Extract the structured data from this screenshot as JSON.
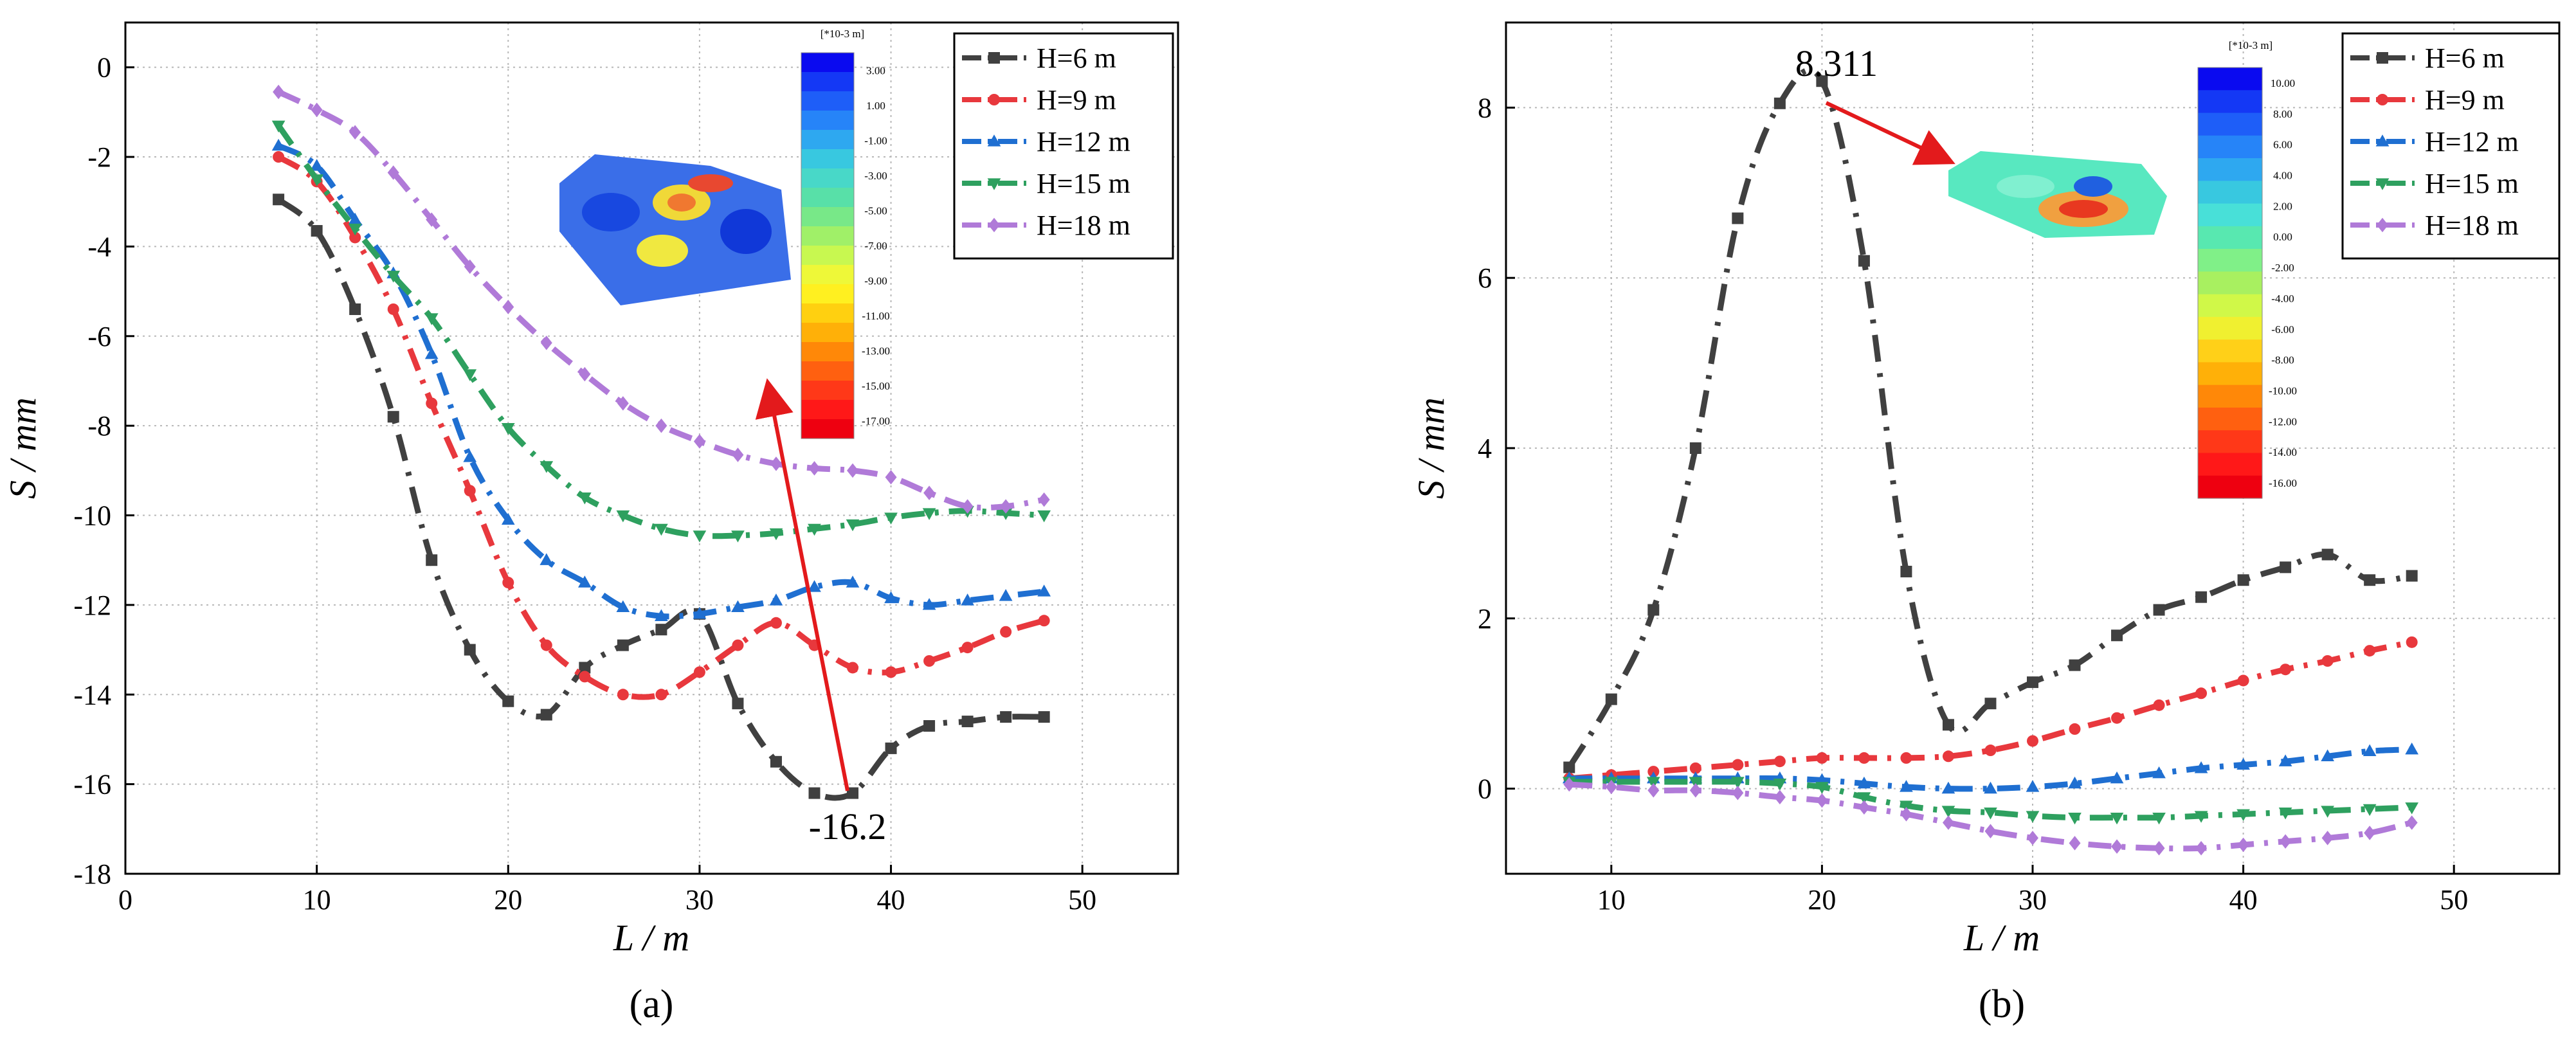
{
  "colors": {
    "H6": "#404040",
    "H9": "#e8383d",
    "H12": "#1f6fd1",
    "H15": "#2ea05f",
    "H18": "#b07ad8",
    "arrow": "#e31a1c",
    "grid": "#b8b8b8"
  },
  "chart_data": [
    {
      "type": "line",
      "panel_label": "(a)",
      "xlabel": "L / m",
      "ylabel": "S / mm",
      "xlim": [
        0,
        55
      ],
      "ylim": [
        -18,
        1
      ],
      "xticks": [
        0,
        10,
        20,
        30,
        40,
        50
      ],
      "yticks": [
        0,
        -2,
        -4,
        -6,
        -8,
        -10,
        -12,
        -14,
        -16,
        -18
      ],
      "grid": true,
      "legend_position": "top-right",
      "series": [
        {
          "name": "H=6 m",
          "key": "H6",
          "marker": "square",
          "x": [
            8,
            10,
            12,
            14,
            16,
            18,
            20,
            22,
            24,
            26,
            28,
            30,
            32,
            34,
            36,
            38,
            40,
            42,
            44,
            46,
            48
          ],
          "y": [
            -2.95,
            -3.65,
            -5.4,
            -7.8,
            -11.0,
            -13.0,
            -14.15,
            -14.45,
            -13.4,
            -12.9,
            -12.55,
            -12.2,
            -14.2,
            -15.5,
            -16.2,
            -16.2,
            -15.2,
            -14.7,
            -14.6,
            -14.5,
            -14.5
          ]
        },
        {
          "name": "H=9 m",
          "key": "H9",
          "marker": "circle",
          "x": [
            8,
            10,
            12,
            14,
            16,
            18,
            20,
            22,
            24,
            26,
            28,
            30,
            32,
            34,
            36,
            38,
            40,
            42,
            44,
            46,
            48
          ],
          "y": [
            -2.0,
            -2.55,
            -3.8,
            -5.4,
            -7.5,
            -9.45,
            -11.5,
            -12.9,
            -13.6,
            -14.0,
            -14.0,
            -13.5,
            -12.9,
            -12.4,
            -12.9,
            -13.4,
            -13.5,
            -13.25,
            -12.95,
            -12.6,
            -12.35
          ]
        },
        {
          "name": "H=12 m",
          "key": "H12",
          "marker": "triangle-up",
          "x": [
            8,
            10,
            12,
            14,
            16,
            18,
            20,
            22,
            24,
            26,
            28,
            30,
            32,
            34,
            36,
            38,
            40,
            42,
            44,
            46,
            48
          ],
          "y": [
            -1.75,
            -2.2,
            -3.4,
            -4.6,
            -6.4,
            -8.7,
            -10.1,
            -11.0,
            -11.5,
            -12.05,
            -12.25,
            -12.2,
            -12.05,
            -11.9,
            -11.6,
            -11.5,
            -11.85,
            -12.0,
            -11.9,
            -11.8,
            -11.7
          ]
        },
        {
          "name": "H=15 m",
          "key": "H15",
          "marker": "triangle-down",
          "x": [
            8,
            10,
            12,
            14,
            16,
            18,
            20,
            22,
            24,
            26,
            28,
            30,
            32,
            34,
            36,
            38,
            40,
            42,
            44,
            46,
            48
          ],
          "y": [
            -1.3,
            -2.5,
            -3.6,
            -4.65,
            -5.6,
            -6.85,
            -8.05,
            -8.9,
            -9.6,
            -10.0,
            -10.3,
            -10.45,
            -10.45,
            -10.4,
            -10.3,
            -10.2,
            -10.05,
            -9.95,
            -9.9,
            -9.95,
            -10.0
          ]
        },
        {
          "name": "H=18 m",
          "key": "H18",
          "marker": "diamond",
          "x": [
            8,
            10,
            12,
            14,
            16,
            18,
            20,
            22,
            24,
            26,
            28,
            30,
            32,
            34,
            36,
            38,
            40,
            42,
            44,
            46,
            48
          ],
          "y": [
            -0.55,
            -0.95,
            -1.45,
            -2.35,
            -3.4,
            -4.45,
            -5.35,
            -6.15,
            -6.85,
            -7.5,
            -8.0,
            -8.35,
            -8.65,
            -8.85,
            -8.95,
            -9.0,
            -9.15,
            -9.5,
            -9.8,
            -9.8,
            -9.65
          ]
        }
      ],
      "annotation": {
        "text": "-16.2",
        "x": 38,
        "y": -16.2
      },
      "contour_legend": {
        "unit": "[*10-3 m]",
        "labels": [
          "3.00",
          "1.00",
          "-1.00",
          "-3.00",
          "-5.00",
          "-7.00",
          "-9.00",
          "-11.00",
          "-13.00",
          "-15.00",
          "-17.00"
        ],
        "colors": [
          "#0a0af0",
          "#1438f5",
          "#1e5ef8",
          "#2684f8",
          "#2ea8f0",
          "#38c8e0",
          "#48d8c8",
          "#58e0a8",
          "#78e888",
          "#a0f068",
          "#c8f850",
          "#eef838",
          "#fff020",
          "#ffd010",
          "#ffb008",
          "#ff8808",
          "#ff6010",
          "#ff3818",
          "#ff1818",
          "#ee0010"
        ]
      }
    },
    {
      "type": "line",
      "panel_label": "(b)",
      "xlabel": "L / m",
      "ylabel": "S / mm",
      "xlim": [
        5,
        55
      ],
      "ylim": [
        -1,
        9
      ],
      "xticks": [
        10,
        20,
        30,
        40,
        50
      ],
      "yticks": [
        0,
        2,
        4,
        6,
        8
      ],
      "grid": true,
      "legend_position": "top-right",
      "series": [
        {
          "name": "H=6 m",
          "key": "H6",
          "marker": "square",
          "x": [
            8,
            10,
            12,
            14,
            16,
            18,
            20,
            22,
            24,
            26,
            28,
            30,
            32,
            34,
            36,
            38,
            40,
            42,
            44,
            46,
            48
          ],
          "y": [
            0.25,
            1.05,
            2.1,
            4.0,
            6.7,
            8.05,
            8.311,
            6.2,
            2.55,
            0.75,
            1.0,
            1.25,
            1.45,
            1.8,
            2.1,
            2.25,
            2.45,
            2.6,
            2.75,
            2.45,
            2.5
          ]
        },
        {
          "name": "H=9 m",
          "key": "H9",
          "marker": "circle",
          "x": [
            8,
            10,
            12,
            14,
            16,
            18,
            20,
            22,
            24,
            26,
            28,
            30,
            32,
            34,
            36,
            38,
            40,
            42,
            44,
            46,
            48
          ],
          "y": [
            0.12,
            0.16,
            0.2,
            0.24,
            0.28,
            0.32,
            0.36,
            0.36,
            0.36,
            0.38,
            0.45,
            0.56,
            0.7,
            0.83,
            0.98,
            1.12,
            1.27,
            1.4,
            1.5,
            1.62,
            1.72
          ]
        },
        {
          "name": "H=12 m",
          "key": "H12",
          "marker": "triangle-up",
          "x": [
            8,
            10,
            12,
            14,
            16,
            18,
            20,
            22,
            24,
            26,
            28,
            30,
            32,
            34,
            36,
            38,
            40,
            42,
            44,
            46,
            48
          ],
          "y": [
            0.12,
            0.12,
            0.12,
            0.12,
            0.12,
            0.12,
            0.1,
            0.06,
            0.02,
            0.0,
            0.0,
            0.02,
            0.06,
            0.12,
            0.18,
            0.24,
            0.28,
            0.32,
            0.38,
            0.44,
            0.46
          ]
        },
        {
          "name": "H=15 m",
          "key": "H15",
          "marker": "triangle-down",
          "x": [
            8,
            10,
            12,
            14,
            16,
            18,
            20,
            22,
            24,
            26,
            28,
            30,
            32,
            34,
            36,
            38,
            40,
            42,
            44,
            46,
            48
          ],
          "y": [
            0.08,
            0.08,
            0.08,
            0.08,
            0.08,
            0.06,
            0.02,
            -0.1,
            -0.2,
            -0.26,
            -0.28,
            -0.32,
            -0.34,
            -0.34,
            -0.34,
            -0.32,
            -0.3,
            -0.28,
            -0.26,
            -0.24,
            -0.22
          ]
        },
        {
          "name": "H=18 m",
          "key": "H18",
          "marker": "diamond",
          "x": [
            8,
            10,
            12,
            14,
            16,
            18,
            20,
            22,
            24,
            26,
            28,
            30,
            32,
            34,
            36,
            38,
            40,
            42,
            44,
            46,
            48
          ],
          "y": [
            0.05,
            0.02,
            -0.02,
            -0.02,
            -0.05,
            -0.1,
            -0.14,
            -0.22,
            -0.3,
            -0.4,
            -0.5,
            -0.58,
            -0.64,
            -0.68,
            -0.7,
            -0.7,
            -0.66,
            -0.62,
            -0.58,
            -0.52,
            -0.4
          ]
        }
      ],
      "annotation": {
        "text": "8.311",
        "x": 20,
        "y": 8.311
      },
      "contour_legend": {
        "unit": "[*10-3 m]",
        "labels": [
          "10.00",
          "8.00",
          "6.00",
          "4.00",
          "2.00",
          "0.00",
          "-2.00",
          "-4.00",
          "-6.00",
          "-8.00",
          "-10.00",
          "-12.00",
          "-14.00",
          "-16.00"
        ],
        "colors": [
          "#0a0af0",
          "#1438f5",
          "#1e5ef8",
          "#2684f8",
          "#2ea8f0",
          "#38c8e0",
          "#48e0d8",
          "#58e8b0",
          "#80f088",
          "#a8f060",
          "#d0f848",
          "#f0f030",
          "#ffd018",
          "#ffb008",
          "#ff8808",
          "#ff6010",
          "#ff3818",
          "#ff1818",
          "#ee0010"
        ]
      }
    }
  ]
}
